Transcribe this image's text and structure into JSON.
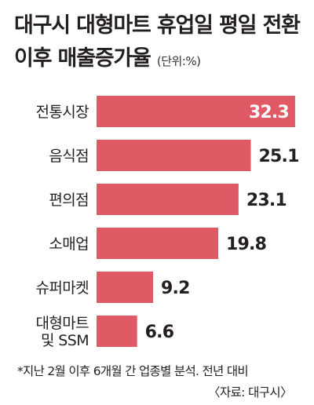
{
  "title": {
    "line1": "대구시 대형마트 휴업일 평일 전환",
    "line2": "이후 매출증가율",
    "unit": "(단위:%)"
  },
  "chart_data": {
    "type": "bar",
    "orientation": "horizontal",
    "categories": [
      [
        "전통시장"
      ],
      [
        "음식점"
      ],
      [
        "편의점"
      ],
      [
        "소매업"
      ],
      [
        "슈퍼마켓"
      ],
      [
        "대형마트",
        "및 SSM"
      ]
    ],
    "values": [
      32.3,
      25.1,
      23.1,
      19.8,
      9.2,
      6.6
    ],
    "value_labels": [
      "32.3",
      "25.1",
      "23.1",
      "19.8",
      "9.2",
      "6.6"
    ],
    "bar_color": "#e05a66",
    "inside_label_color": "#ffffff",
    "outside_label_color": "#231f20"
  },
  "footnote": "*지난 2월 이후 6개월 간 업종별 분석. 전년 대비",
  "source": "〈자료: 대구시〉"
}
